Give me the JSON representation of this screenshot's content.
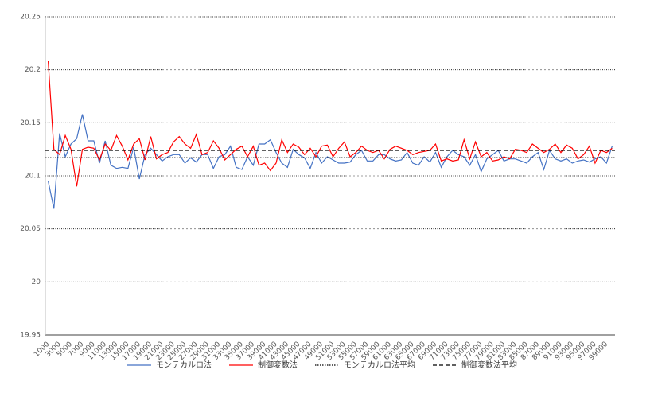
{
  "chart_data": {
    "type": "line",
    "categories": [
      "1000",
      null,
      "3000",
      null,
      "5000",
      null,
      "7000",
      null,
      "9000",
      null,
      "11000",
      null,
      "13000",
      null,
      "15000",
      null,
      "17000",
      null,
      "19000",
      null,
      "21000",
      null,
      "23000",
      null,
      "25000",
      null,
      "27000",
      null,
      "29000",
      null,
      "31000",
      null,
      "33000",
      null,
      "35000",
      null,
      "37000",
      null,
      "39000",
      null,
      "41000",
      null,
      "43000",
      null,
      "45000",
      null,
      "47000",
      null,
      "49000",
      null,
      "51000",
      null,
      "53000",
      null,
      "55000",
      null,
      "57000",
      null,
      "59000",
      null,
      "61000",
      null,
      "63000",
      null,
      "65000",
      null,
      "67000",
      null,
      "69000",
      null,
      "71000",
      null,
      "73000",
      null,
      "75000",
      null,
      "77000",
      null,
      "79000",
      null,
      "81000",
      null,
      "83000",
      null,
      "85000",
      null,
      "87000",
      null,
      "89000",
      null,
      "91000",
      null,
      "93000",
      null,
      "95000",
      null,
      "97000",
      null,
      "99000",
      null
    ],
    "series": [
      {
        "name": "モンテカルロ法",
        "color": "#4472c4",
        "values": [
          20.095,
          20.069,
          20.14,
          20.118,
          20.13,
          20.135,
          20.158,
          20.133,
          20.133,
          20.112,
          20.133,
          20.11,
          20.107,
          20.108,
          20.107,
          20.127,
          20.097,
          20.12,
          20.126,
          20.12,
          20.114,
          20.118,
          20.12,
          20.12,
          20.112,
          20.117,
          20.113,
          20.12,
          20.12,
          20.107,
          20.118,
          20.12,
          20.128,
          20.108,
          20.106,
          20.118,
          20.11,
          20.13,
          20.13,
          20.134,
          20.122,
          20.112,
          20.108,
          20.125,
          20.12,
          20.117,
          20.107,
          20.122,
          20.112,
          20.118,
          20.115,
          20.112,
          20.112,
          20.113,
          20.12,
          20.124,
          20.114,
          20.114,
          20.12,
          20.12,
          20.116,
          20.114,
          20.115,
          20.122,
          20.112,
          20.11,
          20.118,
          20.113,
          20.122,
          20.108,
          20.118,
          20.124,
          20.12,
          20.118,
          20.11,
          20.12,
          20.104,
          20.116,
          20.12,
          20.124,
          20.114,
          20.116,
          20.116,
          20.114,
          20.112,
          20.118,
          20.122,
          20.106,
          20.124,
          20.116,
          20.114,
          20.116,
          20.112,
          20.114,
          20.115,
          20.113,
          20.116,
          20.118,
          20.112,
          20.128
        ]
      },
      {
        "name": "制御変数法",
        "color": "#ff0000",
        "values": [
          20.208,
          20.125,
          20.12,
          20.138,
          20.125,
          20.09,
          20.125,
          20.127,
          20.126,
          20.115,
          20.13,
          20.124,
          20.138,
          20.128,
          20.115,
          20.13,
          20.135,
          20.115,
          20.137,
          20.116,
          20.12,
          20.122,
          20.132,
          20.137,
          20.13,
          20.126,
          20.139,
          20.12,
          20.122,
          20.133,
          20.126,
          20.115,
          20.12,
          20.125,
          20.128,
          20.118,
          20.128,
          20.11,
          20.112,
          20.105,
          20.112,
          20.134,
          20.122,
          20.13,
          20.127,
          20.12,
          20.126,
          20.118,
          20.128,
          20.129,
          20.118,
          20.126,
          20.132,
          20.118,
          20.122,
          20.128,
          20.124,
          20.122,
          20.124,
          20.116,
          20.125,
          20.128,
          20.126,
          20.124,
          20.12,
          20.122,
          20.123,
          20.124,
          20.13,
          20.114,
          20.116,
          20.114,
          20.115,
          20.134,
          20.116,
          20.132,
          20.118,
          20.122,
          20.114,
          20.115,
          20.118,
          20.116,
          20.125,
          20.124,
          20.122,
          20.13,
          20.126,
          20.122,
          20.125,
          20.13,
          20.122,
          20.129,
          20.126,
          20.116,
          20.12,
          20.128,
          20.112,
          20.124,
          20.122,
          20.126
        ]
      }
    ],
    "reference_lines": [
      {
        "name": "モンテカルロ法平均",
        "color": "#000000",
        "style": "dotted",
        "value": 20.117
      },
      {
        "name": "制御変数法平均",
        "color": "#000000",
        "style": "dashed",
        "value": 20.124
      }
    ],
    "ylim": [
      19.95,
      20.25
    ],
    "yticks": [
      19.95,
      20,
      20.05,
      20.1,
      20.15,
      20.2,
      20.25
    ],
    "grid": true,
    "legend": "bottom"
  }
}
